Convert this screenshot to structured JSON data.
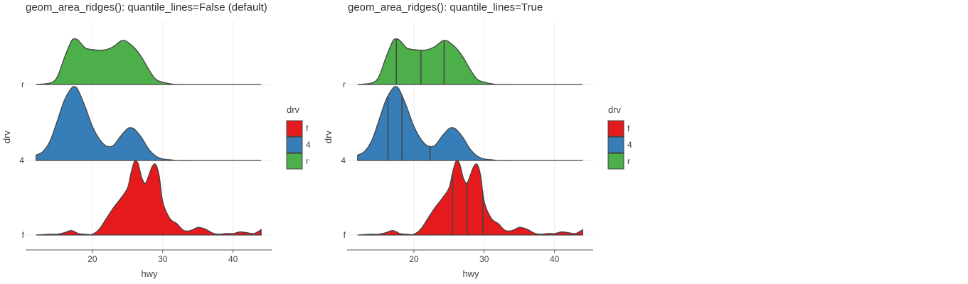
{
  "chart_data": [
    {
      "type": "area",
      "title": "geom_area_ridges(): quantile_lines=False (default)",
      "xlabel": "hwy",
      "ylabel": "drv",
      "xlim": [
        10.5,
        45.5
      ],
      "x_ticks": [
        "20",
        "30",
        "40"
      ],
      "x_tick_values": [
        20,
        30,
        40
      ],
      "y_categories": [
        "f",
        "4",
        "r"
      ],
      "grid": true,
      "quantile_lines": false,
      "legend": {
        "title": "drv",
        "placement": "right",
        "entries": [
          "f",
          "4",
          "r"
        ]
      },
      "colors": {
        "f": "#e41a1c",
        "4": "#377eb8",
        "r": "#4daf4a"
      },
      "series": [
        {
          "name": "r",
          "x": [
            12,
            14,
            15,
            16,
            17,
            17.5,
            18,
            19,
            20,
            21,
            22,
            23,
            24,
            24.5,
            25,
            26,
            27,
            28,
            29,
            30,
            31,
            32,
            34,
            38,
            44
          ],
          "y": [
            0,
            0.02,
            0.1,
            0.35,
            0.57,
            0.6,
            0.58,
            0.48,
            0.46,
            0.45,
            0.46,
            0.5,
            0.57,
            0.58,
            0.56,
            0.48,
            0.36,
            0.2,
            0.07,
            0.03,
            0.01,
            0,
            0,
            0,
            0
          ]
        },
        {
          "name": "4",
          "x": [
            12,
            13,
            14,
            15,
            16,
            17,
            17.5,
            18,
            19,
            20,
            21,
            22,
            23,
            24,
            25,
            25.5,
            26,
            27,
            28,
            29,
            30,
            31,
            32,
            35,
            44
          ],
          "y": [
            0.07,
            0.12,
            0.26,
            0.52,
            0.79,
            0.95,
            0.97,
            0.92,
            0.7,
            0.45,
            0.28,
            0.19,
            0.2,
            0.32,
            0.42,
            0.43,
            0.41,
            0.3,
            0.15,
            0.06,
            0.02,
            0.01,
            0,
            0,
            0
          ]
        },
        {
          "name": "f",
          "x": [
            12,
            14,
            15,
            16,
            17,
            18,
            19,
            20,
            21,
            22,
            23,
            24,
            25,
            25.5,
            26,
            26.5,
            27,
            27.5,
            28,
            28.5,
            29,
            29.5,
            30,
            31,
            32,
            33,
            34,
            35,
            36,
            37,
            38,
            39,
            40,
            41,
            42,
            43,
            44
          ],
          "y": [
            0,
            0.01,
            0.01,
            0.03,
            0.06,
            0.02,
            0.01,
            0.01,
            0.08,
            0.22,
            0.36,
            0.48,
            0.62,
            0.82,
            0.97,
            0.94,
            0.76,
            0.68,
            0.78,
            0.9,
            0.93,
            0.78,
            0.44,
            0.22,
            0.15,
            0.06,
            0.06,
            0.1,
            0.08,
            0.03,
            0.01,
            0.02,
            0.02,
            0.04,
            0.03,
            0.02,
            0.07
          ]
        }
      ]
    },
    {
      "type": "area",
      "title": "geom_area_ridges(): quantile_lines=True",
      "xlabel": "hwy",
      "ylabel": "drv",
      "xlim": [
        10.5,
        45.5
      ],
      "x_ticks": [
        "20",
        "30",
        "40"
      ],
      "x_tick_values": [
        20,
        30,
        40
      ],
      "y_categories": [
        "f",
        "4",
        "r"
      ],
      "grid": true,
      "quantile_lines": true,
      "legend": {
        "title": "drv",
        "placement": "right",
        "entries": [
          "f",
          "4",
          "r"
        ]
      },
      "colors": {
        "f": "#e41a1c",
        "4": "#377eb8",
        "r": "#4daf4a"
      },
      "quantiles": {
        "r": [
          17.5,
          21,
          24.3
        ],
        "4": [
          16.3,
          18.3,
          22.3
        ],
        "f": [
          25.5,
          27.6,
          29.8
        ]
      },
      "series": [
        {
          "name": "r",
          "x": [
            12,
            14,
            15,
            16,
            17,
            17.5,
            18,
            19,
            20,
            21,
            22,
            23,
            24,
            24.5,
            25,
            26,
            27,
            28,
            29,
            30,
            31,
            32,
            34,
            38,
            44
          ],
          "y": [
            0,
            0.02,
            0.1,
            0.35,
            0.57,
            0.6,
            0.58,
            0.48,
            0.46,
            0.45,
            0.46,
            0.5,
            0.57,
            0.58,
            0.56,
            0.48,
            0.36,
            0.2,
            0.07,
            0.03,
            0.01,
            0,
            0,
            0,
            0
          ]
        },
        {
          "name": "4",
          "x": [
            12,
            13,
            14,
            15,
            16,
            17,
            17.5,
            18,
            19,
            20,
            21,
            22,
            23,
            24,
            25,
            25.5,
            26,
            27,
            28,
            29,
            30,
            31,
            32,
            35,
            44
          ],
          "y": [
            0.07,
            0.12,
            0.26,
            0.52,
            0.79,
            0.95,
            0.97,
            0.92,
            0.7,
            0.45,
            0.28,
            0.19,
            0.2,
            0.32,
            0.42,
            0.43,
            0.41,
            0.3,
            0.15,
            0.06,
            0.02,
            0.01,
            0,
            0,
            0
          ]
        },
        {
          "name": "f",
          "x": [
            12,
            14,
            15,
            16,
            17,
            18,
            19,
            20,
            21,
            22,
            23,
            24,
            25,
            25.5,
            26,
            26.5,
            27,
            27.5,
            28,
            28.5,
            29,
            29.5,
            30,
            31,
            32,
            33,
            34,
            35,
            36,
            37,
            38,
            39,
            40,
            41,
            42,
            43,
            44
          ],
          "y": [
            0,
            0.01,
            0.01,
            0.03,
            0.06,
            0.02,
            0.01,
            0.01,
            0.08,
            0.22,
            0.36,
            0.48,
            0.62,
            0.82,
            0.97,
            0.94,
            0.76,
            0.68,
            0.78,
            0.9,
            0.93,
            0.78,
            0.44,
            0.22,
            0.15,
            0.06,
            0.06,
            0.1,
            0.08,
            0.03,
            0.01,
            0.02,
            0.02,
            0.04,
            0.03,
            0.02,
            0.07
          ]
        }
      ]
    }
  ]
}
